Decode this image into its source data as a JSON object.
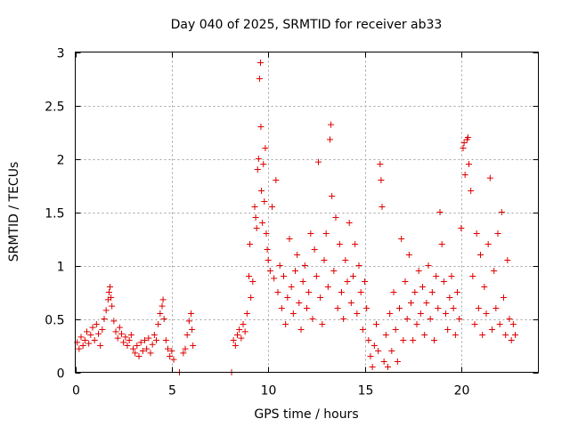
{
  "chart_data": {
    "type": "scatter",
    "title": "Day 040 of 2025, SRMTID for receiver ab33",
    "xlabel": "GPS time / hours",
    "ylabel": "SRMTID / TECUs",
    "xlim": [
      0,
      24
    ],
    "ylim": [
      0,
      3
    ],
    "x_ticks": [
      0,
      5,
      10,
      15,
      20
    ],
    "x_tick_labels": [
      "0",
      "5",
      "10",
      "15",
      "20"
    ],
    "y_ticks": [
      0,
      0.5,
      1,
      1.5,
      2,
      2.5,
      3
    ],
    "y_tick_labels": [
      "0",
      "0.5",
      "1",
      "1.5",
      "2",
      "2.5",
      "3"
    ],
    "grid": true,
    "marker": "+",
    "marker_color": "#e00000",
    "series": [
      {
        "name": "SRMTID",
        "points": [
          [
            0.1,
            0.28
          ],
          [
            0.2,
            0.22
          ],
          [
            0.3,
            0.33
          ],
          [
            0.4,
            0.25
          ],
          [
            0.5,
            0.3
          ],
          [
            0.6,
            0.38
          ],
          [
            0.7,
            0.27
          ],
          [
            0.8,
            0.35
          ],
          [
            0.9,
            0.42
          ],
          [
            1.0,
            0.3
          ],
          [
            1.1,
            0.45
          ],
          [
            1.2,
            0.36
          ],
          [
            1.3,
            0.25
          ],
          [
            1.4,
            0.4
          ],
          [
            1.5,
            0.5
          ],
          [
            1.6,
            0.58
          ],
          [
            1.7,
            0.68
          ],
          [
            1.75,
            0.75
          ],
          [
            1.8,
            0.8
          ],
          [
            1.85,
            0.7
          ],
          [
            1.9,
            0.62
          ],
          [
            2.0,
            0.48
          ],
          [
            2.1,
            0.38
          ],
          [
            2.2,
            0.32
          ],
          [
            2.3,
            0.42
          ],
          [
            2.4,
            0.36
          ],
          [
            2.5,
            0.28
          ],
          [
            2.6,
            0.33
          ],
          [
            2.7,
            0.25
          ],
          [
            2.8,
            0.3
          ],
          [
            2.9,
            0.35
          ],
          [
            3.0,
            0.22
          ],
          [
            3.1,
            0.18
          ],
          [
            3.2,
            0.25
          ],
          [
            3.3,
            0.15
          ],
          [
            3.4,
            0.28
          ],
          [
            3.5,
            0.2
          ],
          [
            3.6,
            0.3
          ],
          [
            3.7,
            0.22
          ],
          [
            3.8,
            0.32
          ],
          [
            3.9,
            0.18
          ],
          [
            4.0,
            0.26
          ],
          [
            4.1,
            0.35
          ],
          [
            4.2,
            0.3
          ],
          [
            4.3,
            0.45
          ],
          [
            4.4,
            0.55
          ],
          [
            4.5,
            0.62
          ],
          [
            4.55,
            0.68
          ],
          [
            4.6,
            0.5
          ],
          [
            4.7,
            0.3
          ],
          [
            4.8,
            0.22
          ],
          [
            4.9,
            0.15
          ],
          [
            5.0,
            0.2
          ],
          [
            5.1,
            0.12
          ],
          [
            5.4,
            0.0
          ],
          [
            5.6,
            0.18
          ],
          [
            5.7,
            0.22
          ],
          [
            5.8,
            0.35
          ],
          [
            5.9,
            0.48
          ],
          [
            6.0,
            0.55
          ],
          [
            6.05,
            0.4
          ],
          [
            6.1,
            0.25
          ],
          [
            8.1,
            0.0
          ],
          [
            8.2,
            0.3
          ],
          [
            8.3,
            0.25
          ],
          [
            8.4,
            0.35
          ],
          [
            8.5,
            0.4
          ],
          [
            8.6,
            0.32
          ],
          [
            8.7,
            0.45
          ],
          [
            8.8,
            0.38
          ],
          [
            8.9,
            0.55
          ],
          [
            9.0,
            0.9
          ],
          [
            9.05,
            1.2
          ],
          [
            9.1,
            0.7
          ],
          [
            9.2,
            0.85
          ],
          [
            9.3,
            1.55
          ],
          [
            9.35,
            1.45
          ],
          [
            9.4,
            1.35
          ],
          [
            9.45,
            1.9
          ],
          [
            9.5,
            2.0
          ],
          [
            9.55,
            2.75
          ],
          [
            9.6,
            2.9
          ],
          [
            9.62,
            2.3
          ],
          [
            9.65,
            1.7
          ],
          [
            9.7,
            1.4
          ],
          [
            9.75,
            1.95
          ],
          [
            9.8,
            1.6
          ],
          [
            9.85,
            2.1
          ],
          [
            9.9,
            1.3
          ],
          [
            9.95,
            1.15
          ],
          [
            10.0,
            1.05
          ],
          [
            10.1,
            0.95
          ],
          [
            10.2,
            1.55
          ],
          [
            10.3,
            0.88
          ],
          [
            10.4,
            1.8
          ],
          [
            10.5,
            0.75
          ],
          [
            10.6,
            1.0
          ],
          [
            10.7,
            0.6
          ],
          [
            10.8,
            0.9
          ],
          [
            10.9,
            0.45
          ],
          [
            11.0,
            0.7
          ],
          [
            11.1,
            1.25
          ],
          [
            11.2,
            0.8
          ],
          [
            11.3,
            0.55
          ],
          [
            11.4,
            0.95
          ],
          [
            11.5,
            1.1
          ],
          [
            11.6,
            0.65
          ],
          [
            11.7,
            0.4
          ],
          [
            11.8,
            0.85
          ],
          [
            11.9,
            1.0
          ],
          [
            12.0,
            0.6
          ],
          [
            12.1,
            0.75
          ],
          [
            12.2,
            1.3
          ],
          [
            12.3,
            0.5
          ],
          [
            12.4,
            1.15
          ],
          [
            12.5,
            0.9
          ],
          [
            12.6,
            1.97
          ],
          [
            12.7,
            0.7
          ],
          [
            12.8,
            0.45
          ],
          [
            12.9,
            1.05
          ],
          [
            13.0,
            1.3
          ],
          [
            13.1,
            0.8
          ],
          [
            13.2,
            2.18
          ],
          [
            13.25,
            2.32
          ],
          [
            13.3,
            1.65
          ],
          [
            13.4,
            0.95
          ],
          [
            13.5,
            1.45
          ],
          [
            13.6,
            0.6
          ],
          [
            13.7,
            1.2
          ],
          [
            13.8,
            0.75
          ],
          [
            13.9,
            0.5
          ],
          [
            14.0,
            1.05
          ],
          [
            14.1,
            0.85
          ],
          [
            14.2,
            1.4
          ],
          [
            14.3,
            0.65
          ],
          [
            14.4,
            0.9
          ],
          [
            14.5,
            1.2
          ],
          [
            14.6,
            0.55
          ],
          [
            14.7,
            1.0
          ],
          [
            14.8,
            0.75
          ],
          [
            14.9,
            0.4
          ],
          [
            15.0,
            0.85
          ],
          [
            15.1,
            0.6
          ],
          [
            15.2,
            0.3
          ],
          [
            15.3,
            0.15
          ],
          [
            15.4,
            0.05
          ],
          [
            15.5,
            0.25
          ],
          [
            15.6,
            0.45
          ],
          [
            15.7,
            0.2
          ],
          [
            15.8,
            1.95
          ],
          [
            15.85,
            1.8
          ],
          [
            15.9,
            1.55
          ],
          [
            16.0,
            0.1
          ],
          [
            16.1,
            0.35
          ],
          [
            16.2,
            0.05
          ],
          [
            16.3,
            0.55
          ],
          [
            16.4,
            0.2
          ],
          [
            16.5,
            0.75
          ],
          [
            16.6,
            0.4
          ],
          [
            16.7,
            0.1
          ],
          [
            16.8,
            0.6
          ],
          [
            16.9,
            1.25
          ],
          [
            17.0,
            0.3
          ],
          [
            17.1,
            0.85
          ],
          [
            17.2,
            0.5
          ],
          [
            17.3,
            1.1
          ],
          [
            17.4,
            0.65
          ],
          [
            17.5,
            0.3
          ],
          [
            17.6,
            0.75
          ],
          [
            17.7,
            0.45
          ],
          [
            17.8,
            0.95
          ],
          [
            17.9,
            0.55
          ],
          [
            18.0,
            0.8
          ],
          [
            18.1,
            0.35
          ],
          [
            18.2,
            0.65
          ],
          [
            18.3,
            1.0
          ],
          [
            18.4,
            0.5
          ],
          [
            18.5,
            0.75
          ],
          [
            18.6,
            0.3
          ],
          [
            18.7,
            0.9
          ],
          [
            18.8,
            0.6
          ],
          [
            18.9,
            1.5
          ],
          [
            19.0,
            1.2
          ],
          [
            19.1,
            0.85
          ],
          [
            19.2,
            0.55
          ],
          [
            19.3,
            0.4
          ],
          [
            19.4,
            0.7
          ],
          [
            19.5,
            0.9
          ],
          [
            19.6,
            0.6
          ],
          [
            19.7,
            0.35
          ],
          [
            19.8,
            0.75
          ],
          [
            19.9,
            0.5
          ],
          [
            20.0,
            1.35
          ],
          [
            20.1,
            2.1
          ],
          [
            20.15,
            2.15
          ],
          [
            20.2,
            1.85
          ],
          [
            20.3,
            2.18
          ],
          [
            20.35,
            2.2
          ],
          [
            20.4,
            1.95
          ],
          [
            20.5,
            1.7
          ],
          [
            20.6,
            0.9
          ],
          [
            20.7,
            0.45
          ],
          [
            20.8,
            1.3
          ],
          [
            20.9,
            0.6
          ],
          [
            21.0,
            1.1
          ],
          [
            21.1,
            0.35
          ],
          [
            21.2,
            0.8
          ],
          [
            21.3,
            0.55
          ],
          [
            21.4,
            1.2
          ],
          [
            21.5,
            1.82
          ],
          [
            21.6,
            0.4
          ],
          [
            21.7,
            0.95
          ],
          [
            21.8,
            0.6
          ],
          [
            21.9,
            1.3
          ],
          [
            22.0,
            0.45
          ],
          [
            22.1,
            1.5
          ],
          [
            22.2,
            0.7
          ],
          [
            22.3,
            0.35
          ],
          [
            22.4,
            1.05
          ],
          [
            22.5,
            0.5
          ],
          [
            22.6,
            0.3
          ],
          [
            22.7,
            0.45
          ],
          [
            22.8,
            0.35
          ]
        ]
      }
    ]
  }
}
